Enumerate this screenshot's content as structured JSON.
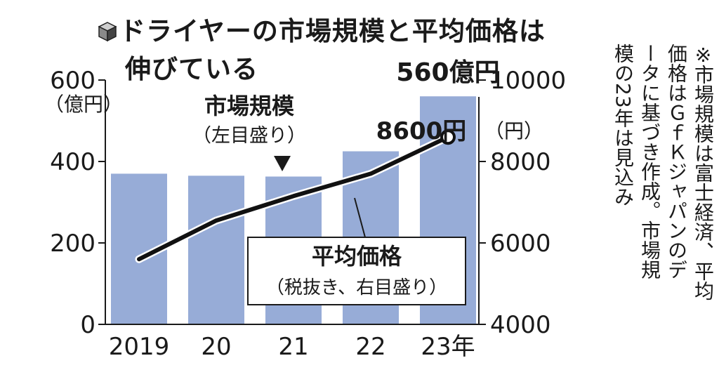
{
  "title": {
    "icon": "cube-icon",
    "line1": "ドライヤーの市場規模と平均価格は",
    "line2": "伸びている"
  },
  "note": {
    "mark": "※",
    "lines": [
      "市場規模は富士経済、平均",
      "価格はＧｆＫジャパンのデ",
      "ータに基づき作成。市場規",
      "模の23年は見込み"
    ]
  },
  "colors": {
    "bar": "#97acd7",
    "line": "#111111",
    "text": "#1a1a1a"
  },
  "chart_data": {
    "type": "bar",
    "categories": [
      "2019",
      "20",
      "21",
      "22",
      "23年"
    ],
    "left_axis": {
      "ylim": [
        0,
        600
      ],
      "ticks": [
        "0",
        "200",
        "400",
        "600"
      ],
      "unit": "（億円）"
    },
    "right_axis": {
      "ylim": [
        4000,
        10000
      ],
      "ticks": [
        "4000",
        "6000",
        "8000",
        "10000"
      ],
      "unit": "（円）"
    },
    "series": [
      {
        "name": "市場規模",
        "sub": "（左目盛り）",
        "type": "bar",
        "axis": "left",
        "values": [
          370,
          365,
          363,
          425,
          560
        ]
      },
      {
        "name": "平均価格",
        "sub": "（税抜き、右目盛り）",
        "type": "line",
        "axis": "right",
        "values": [
          5600,
          6550,
          7150,
          7700,
          8600
        ]
      }
    ],
    "annotations": {
      "bar_last": "560億円",
      "line_last": "8600円"
    }
  }
}
